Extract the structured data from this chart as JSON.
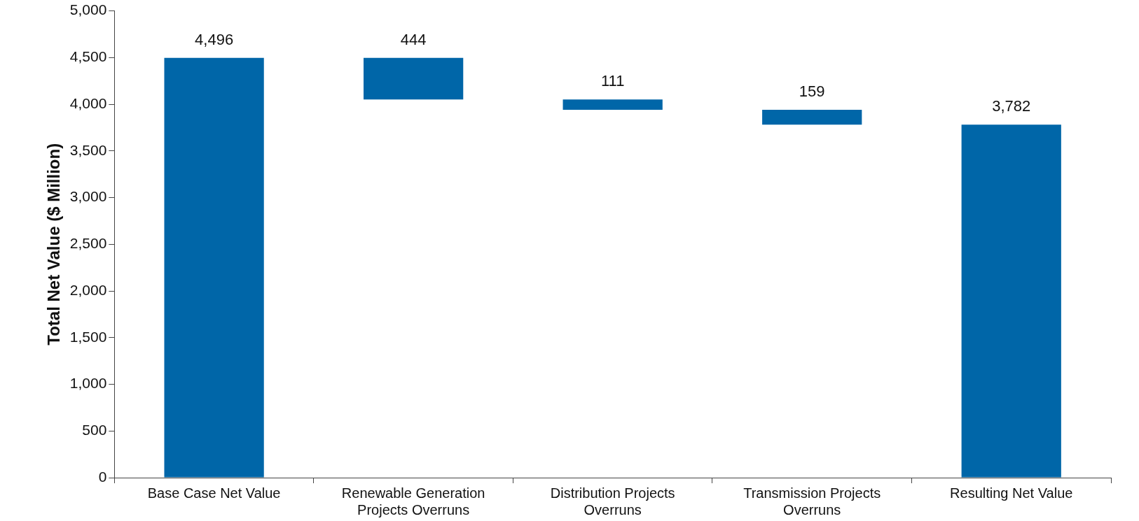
{
  "chart_data": {
    "type": "bar",
    "ylabel": "Total Net Value ($ Million)",
    "categories": [
      "Base Case Net Value",
      "Renewable Generation Projects Overruns",
      "Distribution Projects Overruns",
      "Transmission Projects Overruns",
      "Resulting Net Value"
    ],
    "values": [
      4496,
      444,
      111,
      159,
      3782
    ],
    "base": [
      0,
      4052,
      3941,
      3782,
      0
    ],
    "color": "#0066a8",
    "value_labels": [
      "4,496",
      "444",
      "111",
      "159",
      "3,782"
    ],
    "ylim": [
      0,
      5000
    ],
    "yticks": [
      0,
      500,
      {
        "value": 1000,
        "label": "1,000"
      },
      {
        "value": 1500,
        "label": "1,500"
      },
      {
        "value": 2000,
        "label": "2,000"
      },
      {
        "value": 2500,
        "label": "2,500"
      },
      {
        "value": 3000,
        "label": "3,000"
      },
      {
        "value": 3500,
        "label": "3,500"
      },
      {
        "value": 4000,
        "label": "4,000"
      },
      {
        "value": 4500,
        "label": "4,500"
      },
      {
        "value": 5000,
        "label": "5,000"
      }
    ],
    "legend": false,
    "grid": false
  }
}
